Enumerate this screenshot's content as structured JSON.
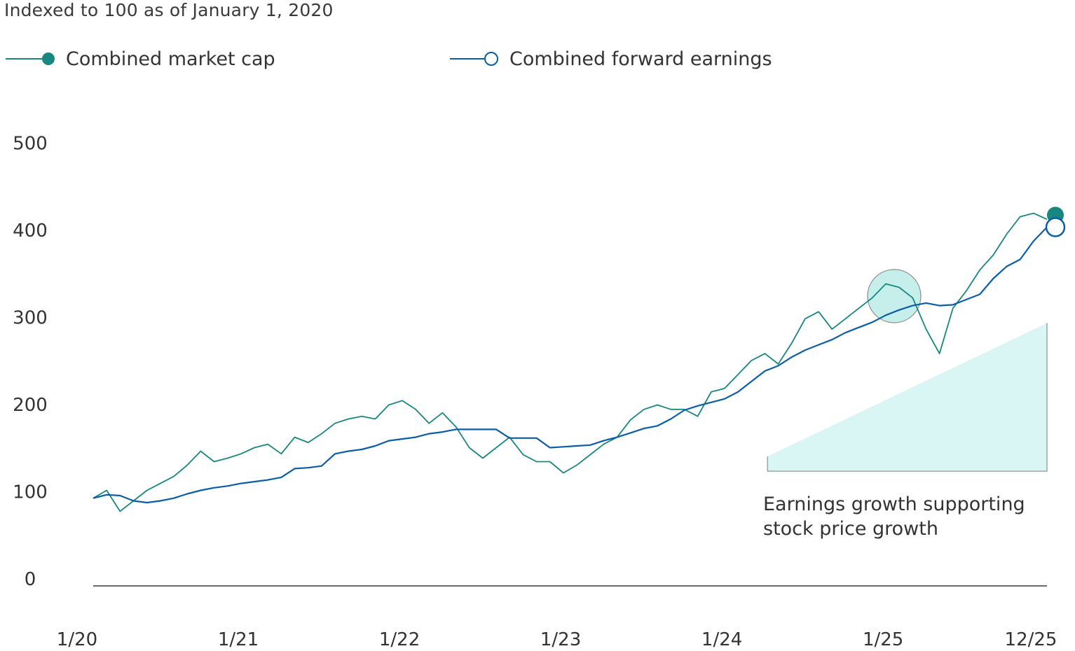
{
  "chart_data": {
    "type": "line",
    "subtitle": "Indexed to 100 as of January 1, 2020",
    "ylim": [
      0,
      500
    ],
    "yticks": [
      0,
      100,
      200,
      300,
      400,
      500
    ],
    "xtick_labels": [
      {
        "label": "1/20",
        "month_index": 0
      },
      {
        "label": "1/21",
        "month_index": 12
      },
      {
        "label": "1/22",
        "month_index": 24
      },
      {
        "label": "1/23",
        "month_index": 36
      },
      {
        "label": "1/24",
        "month_index": 48
      },
      {
        "label": "1/25",
        "month_index": 60
      },
      {
        "label": "12/25",
        "month_index": 71
      }
    ],
    "x_start": "2020-01",
    "x_end": "2025-12",
    "grid": false,
    "legend_placement": "top",
    "series": [
      {
        "name": "Combined market cap",
        "color": "#17877f",
        "marker": "filled-circle",
        "values": [
          99,
          108,
          84,
          96,
          108,
          116,
          124,
          137,
          153,
          141,
          145,
          150,
          157,
          161,
          150,
          169,
          163,
          173,
          185,
          190,
          193,
          190,
          206,
          211,
          201,
          185,
          197,
          181,
          157,
          145,
          157,
          169,
          149,
          141,
          141,
          128,
          137,
          149,
          161,
          169,
          189,
          201,
          206,
          201,
          201,
          193,
          221,
          225,
          241,
          257,
          265,
          253,
          277,
          305,
          313,
          293,
          305,
          317,
          329,
          345,
          341,
          329,
          293,
          265,
          317,
          337,
          361,
          378,
          402,
          422,
          426,
          419
        ]
      },
      {
        "name": "Combined forward earnings",
        "color": "#0a5ea8",
        "marker": "open-circle",
        "values": [
          99,
          103,
          102,
          96,
          94,
          96,
          99,
          104,
          108,
          111,
          113,
          116,
          118,
          120,
          123,
          133,
          134,
          136,
          150,
          153,
          155,
          159,
          165,
          167,
          169,
          173,
          175,
          178,
          178,
          178,
          178,
          168,
          168,
          168,
          157,
          158,
          159,
          160,
          165,
          169,
          174,
          179,
          182,
          190,
          200,
          205,
          209,
          213,
          221,
          233,
          245,
          251,
          261,
          269,
          275,
          281,
          289,
          295,
          301,
          309,
          315,
          320,
          323,
          320,
          321,
          327,
          333,
          351,
          365,
          373,
          394,
          410
        ]
      }
    ],
    "annotations": {
      "text_line1": "Earnings growth supporting",
      "text_line2": "stock price growth",
      "triangle_fill": "#d9f5f4",
      "highlight_fill": "#c6efec"
    }
  }
}
